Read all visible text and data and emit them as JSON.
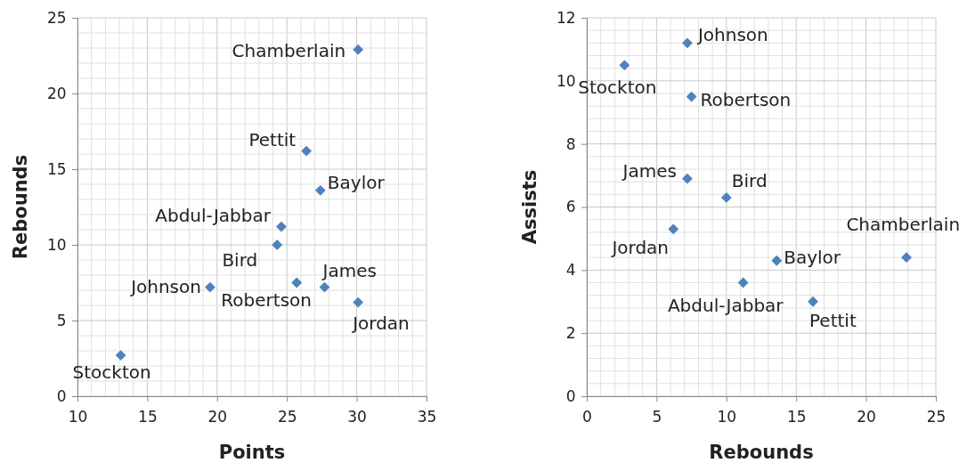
{
  "chart_data": [
    {
      "type": "scatter",
      "xlabel": "Points",
      "ylabel": "Rebounds",
      "xlim": [
        10,
        35
      ],
      "xticks": [
        10,
        15,
        20,
        25,
        30,
        35
      ],
      "ylim": [
        0,
        25
      ],
      "yticks": [
        0,
        5,
        10,
        15,
        20,
        25
      ],
      "grid": true,
      "marker": "diamond",
      "series": [
        {
          "color": "#4f81bd",
          "x": [
            30.1,
            26.4,
            27.4,
            24.6,
            24.3,
            19.5,
            25.7,
            27.7,
            30.1,
            13.1
          ],
          "values": [
            22.9,
            16.2,
            13.6,
            11.2,
            10.0,
            7.2,
            7.5,
            7.2,
            6.2,
            2.7
          ]
        }
      ],
      "annotations": [
        {
          "text": "Chamberlain",
          "x": 30.1,
          "y": 22.9
        },
        {
          "text": "Pettit",
          "x": 26.4,
          "y": 16.2
        },
        {
          "text": "Baylor",
          "x": 27.4,
          "y": 13.6
        },
        {
          "text": "Abdul-Jabbar",
          "x": 24.6,
          "y": 11.2
        },
        {
          "text": "Bird",
          "x": 24.3,
          "y": 10.0
        },
        {
          "text": "Johnson",
          "x": 19.5,
          "y": 7.2
        },
        {
          "text": "Robertson",
          "x": 25.7,
          "y": 7.5
        },
        {
          "text": "James",
          "x": 27.7,
          "y": 7.2
        },
        {
          "text": "Jordan",
          "x": 30.1,
          "y": 6.2
        },
        {
          "text": "Stockton",
          "x": 13.1,
          "y": 2.7
        }
      ]
    },
    {
      "type": "scatter",
      "xlabel": "Rebounds",
      "ylabel": "Assists",
      "xlim": [
        0,
        25
      ],
      "xticks": [
        0,
        5,
        10,
        15,
        20,
        25
      ],
      "ylim": [
        0,
        12
      ],
      "yticks": [
        0,
        2,
        4,
        6,
        8,
        10,
        12
      ],
      "grid": true,
      "marker": "diamond",
      "series": [
        {
          "color": "#4f81bd",
          "x": [
            7.2,
            2.7,
            7.5,
            7.2,
            10.0,
            6.2,
            13.6,
            11.2,
            16.2,
            22.9
          ],
          "values": [
            11.2,
            10.5,
            9.5,
            6.9,
            6.3,
            5.3,
            4.3,
            3.6,
            3.0,
            4.4
          ]
        }
      ],
      "annotations": [
        {
          "text": "Johnson",
          "x": 7.2,
          "y": 11.2
        },
        {
          "text": "Stockton",
          "x": 2.7,
          "y": 10.5
        },
        {
          "text": "Robertson",
          "x": 7.5,
          "y": 9.5
        },
        {
          "text": "James",
          "x": 7.2,
          "y": 6.9
        },
        {
          "text": "Bird",
          "x": 10.0,
          "y": 6.3
        },
        {
          "text": "Jordan",
          "x": 6.2,
          "y": 5.3
        },
        {
          "text": "Baylor",
          "x": 13.6,
          "y": 4.3
        },
        {
          "text": "Abdul-Jabbar",
          "x": 11.2,
          "y": 3.6
        },
        {
          "text": "Pettit",
          "x": 16.2,
          "y": 3.0
        },
        {
          "text": "Chamberlain",
          "x": 22.9,
          "y": 4.4
        }
      ]
    }
  ]
}
